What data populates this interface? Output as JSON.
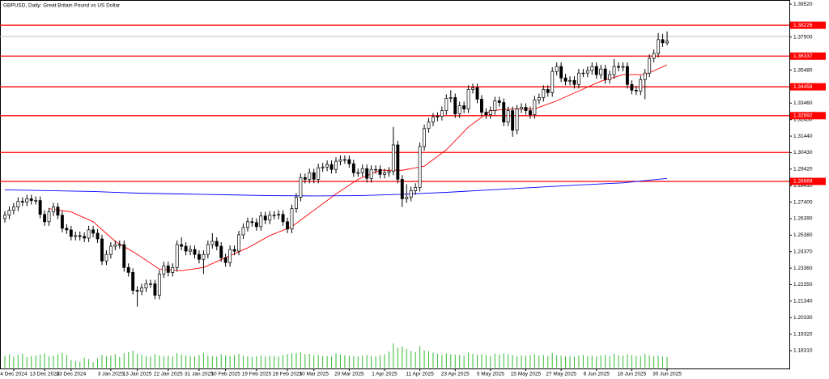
{
  "chart_data": {
    "type": "candlestick",
    "title": "GBPUSD, Daily:  Great Britain Pound vs US Dollar",
    "categories": [
      null,
      null,
      "4 Dec 2024",
      null,
      null,
      null,
      null,
      null,
      null,
      "13 Dec 2024",
      null,
      null,
      null,
      null,
      null,
      "23 Dec 2024",
      null,
      null,
      null,
      null,
      null,
      null,
      null,
      null,
      "3 Jan 2025",
      null,
      null,
      null,
      null,
      null,
      "13 Jan 2025",
      null,
      null,
      null,
      null,
      null,
      null,
      "22 Jan 2025",
      null,
      null,
      null,
      null,
      null,
      null,
      "31 Jan 2025",
      null,
      null,
      null,
      null,
      null,
      "10 Feb 2025",
      null,
      null,
      null,
      null,
      null,
      null,
      "19 Feb 2025",
      null,
      null,
      null,
      null,
      null,
      null,
      "28 Feb 2025",
      null,
      null,
      null,
      null,
      null,
      "10 Mar 2025",
      null,
      null,
      null,
      null,
      null,
      null,
      null,
      "20 Mar 2025",
      null,
      null,
      null,
      null,
      null,
      null,
      null,
      "1 Apr 2025",
      null,
      null,
      null,
      null,
      null,
      null,
      null,
      "11 Apr 2025",
      null,
      null,
      null,
      null,
      null,
      null,
      null,
      "23 Apr 2025",
      null,
      null,
      null,
      null,
      null,
      null,
      null,
      "5 May 2025",
      null,
      null,
      null,
      null,
      null,
      null,
      null,
      "15 May 2025",
      null,
      null,
      null,
      null,
      null,
      null,
      null,
      "27 May 2025",
      null,
      null,
      null,
      null,
      null,
      null,
      null,
      "6 Jun 2025",
      null,
      null,
      null,
      null,
      null,
      null,
      null,
      "18 Jun 2025",
      null,
      null,
      null,
      null,
      null,
      null,
      null,
      "30 Jun 2025"
    ],
    "open": [
      1.264,
      1.266,
      1.269,
      1.271,
      1.2745,
      1.274,
      1.276,
      1.275,
      1.275,
      1.2665,
      1.262,
      1.268,
      1.271,
      1.266,
      1.258,
      1.257,
      1.253,
      1.2535,
      1.253,
      1.252,
      1.257,
      1.255,
      1.2515,
      1.238,
      1.242,
      1.247,
      1.248,
      1.248,
      1.234,
      1.231,
      1.22,
      1.2195,
      1.2215,
      1.224,
      1.224,
      1.217,
      1.23,
      1.235,
      1.231,
      1.234,
      1.248,
      1.247,
      1.244,
      1.245,
      1.242,
      1.239,
      1.242,
      1.248,
      1.25,
      1.247,
      1.24,
      1.237,
      1.245,
      1.244,
      1.254,
      1.2585,
      1.262,
      1.2615,
      1.259,
      1.2655,
      1.263,
      1.266,
      1.266,
      1.2665,
      1.262,
      1.2575,
      1.27,
      1.277,
      1.289,
      1.288,
      1.292,
      1.288,
      1.295,
      1.2955,
      1.297,
      1.294,
      1.299,
      1.3,
      1.3,
      1.2975,
      1.292,
      1.292,
      1.2945,
      1.2885,
      1.294,
      1.294,
      1.291,
      1.292,
      1.293,
      1.309,
      1.288,
      1.276,
      1.277,
      1.281,
      1.283,
      1.308,
      1.319,
      1.323,
      1.326,
      1.3265,
      1.33,
      1.3375,
      1.338,
      1.328,
      1.333,
      1.331,
      1.343,
      1.344,
      1.337,
      1.329,
      1.3275,
      1.33,
      1.336,
      1.335,
      1.323,
      1.33,
      1.318,
      1.331,
      1.332,
      1.33,
      1.3275,
      1.3365,
      1.338,
      1.343,
      1.341,
      1.354,
      1.357,
      1.35,
      1.348,
      1.3485,
      1.346,
      1.353,
      1.353,
      1.3545,
      1.357,
      1.352,
      1.3555,
      1.349,
      1.352,
      1.357,
      1.3565,
      1.357,
      1.346,
      1.3425,
      1.342,
      1.349,
      1.353,
      1.362,
      1.365,
      1.3735,
      1.3715
    ],
    "high": [
      1.2685,
      1.2715,
      1.2735,
      1.277,
      1.277,
      1.2785,
      1.2785,
      1.2775,
      1.2775,
      1.269,
      1.2705,
      1.2735,
      1.2735,
      1.2685,
      1.2605,
      1.2595,
      1.256,
      1.256,
      1.2555,
      1.2595,
      1.2595,
      1.2575,
      1.254,
      1.2445,
      1.2495,
      1.2505,
      1.2505,
      1.2505,
      1.2365,
      1.2335,
      1.2225,
      1.224,
      1.2265,
      1.2265,
      1.2265,
      1.2325,
      1.2375,
      1.2375,
      1.2365,
      1.2505,
      1.2525,
      1.2495,
      1.2475,
      1.2475,
      1.2445,
      1.2445,
      1.2505,
      1.255,
      1.2525,
      1.2495,
      1.2425,
      1.2475,
      1.2475,
      1.2565,
      1.261,
      1.2645,
      1.2645,
      1.264,
      1.268,
      1.268,
      1.2685,
      1.2685,
      1.269,
      1.269,
      1.2645,
      1.2725,
      1.2795,
      1.2915,
      1.2915,
      1.2945,
      1.2945,
      1.2975,
      1.298,
      1.2995,
      1.2995,
      1.3015,
      1.3025,
      1.3025,
      1.3025,
      1.3,
      1.2945,
      1.297,
      1.297,
      1.2965,
      1.2965,
      1.2965,
      1.2945,
      1.2955,
      1.32,
      1.3115,
      1.2905,
      1.285,
      1.2835,
      1.2855,
      1.3105,
      1.3215,
      1.3255,
      1.3285,
      1.329,
      1.3325,
      1.34,
      1.3425,
      1.3405,
      1.3355,
      1.3355,
      1.3455,
      1.3465,
      1.3465,
      1.3395,
      1.3315,
      1.3325,
      1.3385,
      1.3385,
      1.3375,
      1.3325,
      1.3325,
      1.3335,
      1.3345,
      1.3345,
      1.3325,
      1.339,
      1.3405,
      1.3455,
      1.3455,
      1.3565,
      1.3595,
      1.3595,
      1.3525,
      1.351,
      1.351,
      1.3555,
      1.3555,
      1.357,
      1.3595,
      1.3595,
      1.358,
      1.358,
      1.3545,
      1.3615,
      1.3595,
      1.3595,
      1.3595,
      1.3485,
      1.345,
      1.3515,
      1.3555,
      1.3645,
      1.3675,
      1.3775,
      1.377,
      1.3785
    ],
    "low": [
      1.2615,
      1.2635,
      1.2665,
      1.2685,
      1.2715,
      1.2715,
      1.2725,
      1.2725,
      1.264,
      1.2595,
      1.2595,
      1.2655,
      1.2635,
      1.2555,
      1.2545,
      1.2505,
      1.2505,
      1.2505,
      1.2495,
      1.2495,
      1.2525,
      1.249,
      1.2355,
      1.2355,
      1.2395,
      1.2445,
      1.2455,
      1.2315,
      1.2285,
      1.2175,
      1.21,
      1.217,
      1.219,
      1.2215,
      1.2145,
      1.2145,
      1.2275,
      1.2285,
      1.2285,
      1.2315,
      1.2445,
      1.2415,
      1.2415,
      1.2395,
      1.2365,
      1.23,
      1.2395,
      1.2455,
      1.2445,
      1.2375,
      1.2345,
      1.2345,
      1.2415,
      1.2415,
      1.2515,
      1.256,
      1.259,
      1.2565,
      1.2565,
      1.2605,
      1.2605,
      1.2635,
      1.2635,
      1.2595,
      1.255,
      1.255,
      1.2675,
      1.2745,
      1.2855,
      1.2855,
      1.2855,
      1.2855,
      1.2925,
      1.293,
      1.2915,
      1.2915,
      1.2965,
      1.2975,
      1.295,
      1.2895,
      1.2895,
      1.2895,
      1.286,
      1.286,
      1.2915,
      1.2885,
      1.2885,
      1.2895,
      1.2905,
      1.2855,
      1.271,
      1.2735,
      1.2745,
      1.2785,
      1.2805,
      1.3055,
      1.3165,
      1.3205,
      1.3235,
      1.324,
      1.3275,
      1.335,
      1.3255,
      1.3255,
      1.3285,
      1.3285,
      1.3405,
      1.3345,
      1.3265,
      1.325,
      1.325,
      1.3275,
      1.3325,
      1.3205,
      1.3205,
      1.314,
      1.3155,
      1.3285,
      1.3275,
      1.325,
      1.325,
      1.334,
      1.3355,
      1.3385,
      1.3385,
      1.3515,
      1.3475,
      1.3455,
      1.3455,
      1.3435,
      1.3435,
      1.3505,
      1.3505,
      1.352,
      1.3495,
      1.3495,
      1.3465,
      1.3465,
      1.3495,
      1.354,
      1.354,
      1.3435,
      1.34,
      1.3395,
      1.3395,
      1.337,
      1.3505,
      1.3595,
      1.3625,
      1.369,
      1.37
    ],
    "close": [
      1.266,
      1.269,
      1.271,
      1.2745,
      1.274,
      1.276,
      1.275,
      1.275,
      1.2665,
      1.262,
      1.268,
      1.271,
      1.266,
      1.258,
      1.257,
      1.253,
      1.2535,
      1.253,
      1.252,
      1.257,
      1.255,
      1.2515,
      1.238,
      1.242,
      1.247,
      1.248,
      1.248,
      1.234,
      1.231,
      1.22,
      1.2195,
      1.2215,
      1.224,
      1.224,
      1.217,
      1.23,
      1.235,
      1.231,
      1.234,
      1.248,
      1.247,
      1.244,
      1.245,
      1.242,
      1.239,
      1.242,
      1.248,
      1.25,
      1.247,
      1.24,
      1.237,
      1.245,
      1.244,
      1.254,
      1.2585,
      1.262,
      1.2615,
      1.259,
      1.2655,
      1.263,
      1.266,
      1.266,
      1.2665,
      1.262,
      1.2575,
      1.27,
      1.277,
      1.289,
      1.288,
      1.292,
      1.288,
      1.295,
      1.2955,
      1.297,
      1.294,
      1.299,
      1.3,
      1.3,
      1.2975,
      1.292,
      1.292,
      1.2945,
      1.2885,
      1.294,
      1.294,
      1.291,
      1.292,
      1.293,
      1.309,
      1.288,
      1.276,
      1.277,
      1.281,
      1.283,
      1.308,
      1.319,
      1.323,
      1.326,
      1.3265,
      1.33,
      1.3375,
      1.338,
      1.328,
      1.333,
      1.331,
      1.343,
      1.344,
      1.337,
      1.329,
      1.3275,
      1.33,
      1.336,
      1.335,
      1.323,
      1.33,
      1.318,
      1.331,
      1.332,
      1.33,
      1.3275,
      1.3365,
      1.338,
      1.343,
      1.341,
      1.354,
      1.357,
      1.35,
      1.348,
      1.3485,
      1.346,
      1.353,
      1.353,
      1.3545,
      1.357,
      1.352,
      1.3555,
      1.349,
      1.352,
      1.357,
      1.3565,
      1.357,
      1.346,
      1.3425,
      1.342,
      1.349,
      1.353,
      1.362,
      1.365,
      1.3735,
      1.3715,
      1.3725
    ],
    "volume": [
      62,
      70,
      58,
      66,
      72,
      55,
      60,
      64,
      68,
      74,
      58,
      62,
      70,
      78,
      66,
      40,
      35,
      30,
      52,
      45,
      28,
      48,
      66,
      58,
      62,
      70,
      56,
      74,
      80,
      88,
      72,
      66,
      60,
      58,
      70,
      64,
      60,
      62,
      58,
      76,
      68,
      64,
      60,
      58,
      66,
      78,
      62,
      60,
      58,
      70,
      64,
      60,
      66,
      72,
      62,
      58,
      56,
      60,
      64,
      58,
      62,
      60,
      58,
      66,
      70,
      74,
      76,
      80,
      70,
      72,
      64,
      66,
      62,
      60,
      58,
      74,
      68,
      64,
      62,
      60,
      58,
      62,
      66,
      60,
      58,
      64,
      70,
      84,
      126,
      104,
      110,
      98,
      88,
      80,
      112,
      90,
      86,
      78,
      72,
      66,
      74,
      70,
      68,
      66,
      62,
      80,
      72,
      68,
      70,
      66,
      60,
      72,
      68,
      74,
      70,
      66,
      60,
      64,
      62,
      66,
      70,
      64,
      66,
      60,
      76,
      64,
      62,
      58,
      60,
      56,
      64,
      66,
      60,
      62,
      58,
      64,
      66,
      60,
      72,
      64,
      62,
      70,
      66,
      62,
      60,
      72,
      64,
      60,
      62,
      58,
      56
    ],
    "moving_averages": [
      {
        "color": "#ff0000",
        "x": [
          10,
          15,
          20,
          25,
          30,
          35,
          40,
          45,
          50,
          55,
          60,
          65,
          70,
          75,
          80,
          85,
          90,
          95,
          100,
          105,
          110,
          115,
          120,
          125,
          130,
          135,
          140,
          145,
          150
        ],
        "values": [
          1.27,
          1.268,
          1.262,
          1.25,
          1.242,
          1.233,
          1.232,
          1.234,
          1.24,
          1.246,
          1.2535,
          1.259,
          1.269,
          1.279,
          1.288,
          1.2935,
          1.2935,
          1.296,
          1.306,
          1.32,
          1.33,
          1.331,
          1.331,
          1.336,
          1.342,
          1.348,
          1.352,
          1.352,
          1.358
        ]
      },
      {
        "color": "#0000ff",
        "x": [
          0,
          10,
          20,
          30,
          40,
          50,
          60,
          70,
          80,
          90,
          100,
          110,
          120,
          130,
          140,
          150
        ],
        "values": [
          1.2815,
          1.281,
          1.2805,
          1.2795,
          1.279,
          1.2785,
          1.278,
          1.2778,
          1.278,
          1.2788,
          1.28,
          1.2815,
          1.283,
          1.2845,
          1.2858,
          1.2885
        ]
      }
    ],
    "levels": [
      1.38226,
      1.36337,
      1.34458,
      1.32692,
      1.28669
    ],
    "unlabeled_levels": [
      1.3044
    ],
    "bid": 1.3754,
    "ylim": [
      1.1722,
      1.3977
    ],
    "yticks": [
      {
        "value": 1.3952,
        "label": "1.39520"
      },
      {
        "value": 1.375,
        "label": "1.37500"
      },
      {
        "value": 1.3548,
        "label": "1.35480"
      },
      {
        "value": 1.3346,
        "label": "1.33460"
      },
      {
        "value": 1.3245,
        "label": "1.32450"
      },
      {
        "value": 1.3144,
        "label": "1.31440"
      },
      {
        "value": 1.3043,
        "label": "1.30430"
      },
      {
        "value": 1.2942,
        "label": "1.29420"
      },
      {
        "value": 1.2841,
        "label": "1.28410"
      },
      {
        "value": 1.274,
        "label": "1.27400"
      },
      {
        "value": 1.2639,
        "label": "1.26390"
      },
      {
        "value": 1.2538,
        "label": "1.25380"
      },
      {
        "value": 1.2437,
        "label": "1.24370"
      },
      {
        "value": 1.2336,
        "label": "1.23360"
      },
      {
        "value": 1.2235,
        "label": "1.22350"
      },
      {
        "value": 1.2134,
        "label": "1.21340"
      },
      {
        "value": 1.2033,
        "label": "1.20330"
      },
      {
        "value": 1.1932,
        "label": "1.19320"
      },
      {
        "value": 1.1831,
        "label": "1.18310"
      }
    ],
    "up_color": "#ffffff",
    "down_color": "#000000",
    "level_color": "#ff0000",
    "bid_color": "#c0c0c0",
    "volume_color": "#33bb33"
  }
}
